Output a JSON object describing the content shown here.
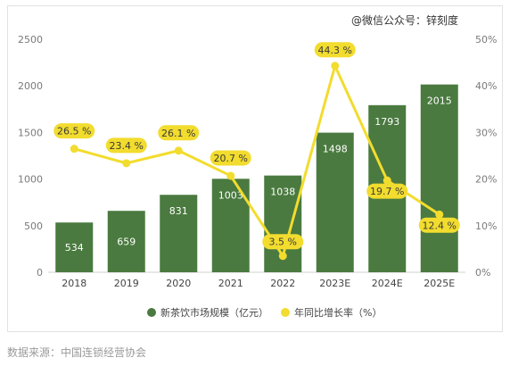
{
  "watermark": "@微信公众号：锌刻度",
  "source": "数据来源：中国连锁经营协会",
  "chart_data": {
    "type": "bar",
    "categories": [
      "2018",
      "2019",
      "2020",
      "2021",
      "2022",
      "2023E",
      "2024E",
      "2025E"
    ],
    "series": [
      {
        "name": "新茶饮市场规模（亿元）",
        "type": "bar",
        "axis": "left",
        "values": [
          534,
          659,
          831,
          1003,
          1038,
          1498,
          1793,
          2015
        ],
        "labels": [
          "534",
          "659",
          "831",
          "1003",
          "1038",
          "1498",
          "1793",
          "2015"
        ],
        "color": "#4a7a3f"
      },
      {
        "name": "年同比增长率（%）",
        "type": "line",
        "axis": "right",
        "values": [
          26.5,
          23.4,
          26.1,
          20.7,
          3.5,
          44.3,
          19.7,
          12.4
        ],
        "labels": [
          "26.5 %",
          "23.4 %",
          "26.1 %",
          "20.7 %",
          "3.5 %",
          "44.3 %",
          "19.7 %",
          "12.4 %"
        ],
        "color": "#f2dc2e"
      }
    ],
    "y_left": {
      "lim": [
        0,
        2500
      ],
      "ticks": [
        "0",
        "500",
        "1000",
        "1500",
        "2000",
        "2500"
      ]
    },
    "y_right": {
      "lim": [
        0,
        50
      ],
      "ticks": [
        "0%",
        "10%",
        "20%",
        "30%",
        "40%",
        "50%"
      ]
    },
    "grid": false,
    "legend": "bottom"
  }
}
